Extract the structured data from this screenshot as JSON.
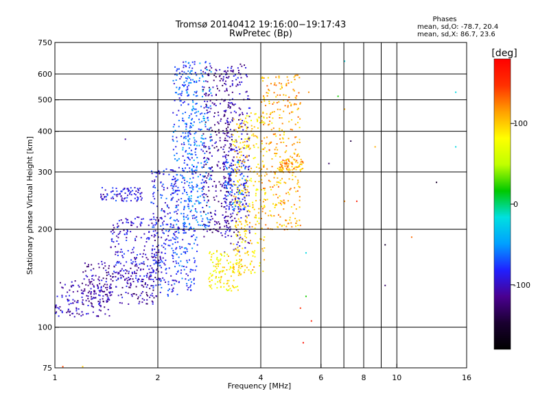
{
  "chart_data": {
    "type": "scatter",
    "title": "Tromsø 20140412 19:16:00−19:17:43",
    "subtitle": "RwPretec (Bp)",
    "xlabel": "Frequency [MHz]",
    "ylabel": "Stationary phase Virtual Height [km]",
    "x_scale": "log2",
    "y_scale": "log",
    "xlim": [
      1,
      16
    ],
    "ylim": [
      75,
      750
    ],
    "x_ticks": [
      1,
      2,
      4,
      6,
      8,
      10,
      16
    ],
    "x_tick_labels": [
      "1",
      "2",
      "4",
      "6",
      "8",
      "10",
      "16"
    ],
    "x_gridlines": [
      2,
      4,
      6,
      7,
      8,
      9,
      10
    ],
    "y_ticks": [
      75,
      100,
      200,
      300,
      400,
      500,
      600,
      750
    ],
    "y_tick_labels": [
      "75",
      "100",
      "200",
      "300",
      "400",
      "500",
      "600",
      "750"
    ],
    "y_gridlines": [
      100,
      200,
      300,
      400,
      500,
      600
    ],
    "grid": true,
    "stats_header": "Phases",
    "stats": [
      "mean, sd,O: -78.7, 20.4",
      "mean, sd,X:  86.7, 23.6"
    ],
    "colorbar": {
      "label": "[deg]",
      "range": [
        -180,
        180
      ],
      "ticks": [
        100,
        0,
        -100
      ],
      "tick_labels": [
        "100",
        "0",
        "-100"
      ],
      "colors": [
        "#000000",
        "#1a0030",
        "#4a0090",
        "#2020ff",
        "#00a0ff",
        "#00e0e0",
        "#00c800",
        "#c0ff00",
        "#ffff00",
        "#ffa000",
        "#ff3000",
        "#ff0000"
      ]
    },
    "series": [
      {
        "clusters": [
          {
            "x": [
              1.0,
              1.45
            ],
            "y": [
              108,
              140
            ],
            "phase": -105
          },
          {
            "x": [
              1.2,
              2.0
            ],
            "y": [
              118,
              160
            ],
            "phase": -110
          },
          {
            "x": [
              1.45,
              2.1
            ],
            "y": [
              140,
              220
            ],
            "phase": -95
          },
          {
            "x": [
              1.35,
              1.8
            ],
            "y": [
              245,
              270
            ],
            "phase": -90
          },
          {
            "x": [
              1.9,
              2.3
            ],
            "y": [
              125,
              310
            ],
            "phase": -85
          },
          {
            "x": [
              2.2,
              2.6
            ],
            "y": [
              130,
              660
            ],
            "phase": -75
          },
          {
            "x": [
              2.35,
              2.85
            ],
            "y": [
              200,
              660
            ],
            "phase": -60
          },
          {
            "x": [
              2.7,
              3.3
            ],
            "y": [
              190,
              650
            ],
            "phase": -115
          },
          {
            "x": [
              3.1,
              3.7
            ],
            "y": [
              170,
              650
            ],
            "phase": -105
          },
          {
            "x": [
              3.1,
              3.6
            ],
            "y": [
              230,
              330
            ],
            "phase": -70
          },
          {
            "x": [
              2.8,
              3.5
            ],
            "y": [
              130,
              175
            ],
            "phase": 85
          },
          {
            "x": [
              3.3,
              4.1
            ],
            "y": [
              145,
              460
            ],
            "phase": 95
          },
          {
            "x": [
              4.0,
              5.2
            ],
            "y": [
              200,
              600
            ],
            "phase": 110
          },
          {
            "x": [
              4.5,
              5.3
            ],
            "y": [
              300,
              330
            ],
            "phase": 115
          }
        ],
        "scattered": [
          {
            "x": 1.6,
            "y": 380,
            "phase": -110
          },
          {
            "x": 5.5,
            "y": 530,
            "phase": 120
          },
          {
            "x": 6.3,
            "y": 320,
            "phase": -130
          },
          {
            "x": 6.7,
            "y": 515,
            "phase": 20
          },
          {
            "x": 7.0,
            "y": 660,
            "phase": -20
          },
          {
            "x": 7.0,
            "y": 470,
            "phase": 110
          },
          {
            "x": 7.3,
            "y": 375,
            "phase": -140
          },
          {
            "x": 7.0,
            "y": 245,
            "phase": 120
          },
          {
            "x": 7.6,
            "y": 245,
            "phase": 160
          },
          {
            "x": 8.6,
            "y": 360,
            "phase": 110
          },
          {
            "x": 9.2,
            "y": 180,
            "phase": -150
          },
          {
            "x": 9.2,
            "y": 135,
            "phase": -130
          },
          {
            "x": 11.0,
            "y": 190,
            "phase": 130
          },
          {
            "x": 13.0,
            "y": 280,
            "phase": -150
          },
          {
            "x": 14.8,
            "y": 530,
            "phase": -20
          },
          {
            "x": 14.8,
            "y": 360,
            "phase": -20
          },
          {
            "x": 5.4,
            "y": 170,
            "phase": -20
          },
          {
            "x": 5.4,
            "y": 125,
            "phase": 20
          },
          {
            "x": 5.3,
            "y": 90,
            "phase": 170
          },
          {
            "x": 5.6,
            "y": 105,
            "phase": 160
          },
          {
            "x": 1.05,
            "y": 76,
            "phase": 140
          },
          {
            "x": 1.2,
            "y": 76,
            "phase": 100
          },
          {
            "x": 5.2,
            "y": 115,
            "phase": 150
          }
        ]
      }
    ]
  }
}
